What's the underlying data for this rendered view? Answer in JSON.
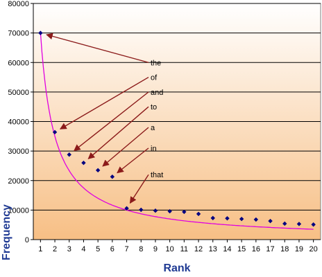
{
  "chart_data": {
    "type": "scatter",
    "title": "",
    "xlabel": "Rank",
    "ylabel": "Frequency",
    "xlim": [
      0.5,
      20.5
    ],
    "ylim": [
      0,
      80000
    ],
    "x_ticks": [
      1,
      2,
      3,
      4,
      5,
      6,
      7,
      8,
      9,
      10,
      11,
      12,
      13,
      14,
      15,
      16,
      17,
      18,
      19,
      20
    ],
    "y_ticks": [
      0,
      10000,
      20000,
      30000,
      40000,
      50000,
      60000,
      70000,
      80000
    ],
    "y_tick_labels": [
      "0",
      "10000",
      "20000",
      "30000",
      "40000",
      "50000",
      "60000",
      "70000",
      "80000"
    ],
    "grid": "horizontal",
    "background_gradient": [
      "#ffffff",
      "#f7bf85"
    ],
    "series": [
      {
        "kind": "points",
        "color": "#000080",
        "x": [
          1,
          2,
          3,
          4,
          5,
          6,
          7,
          8,
          9,
          10,
          11,
          12,
          13,
          14,
          15,
          16,
          17,
          18,
          19,
          20
        ],
        "y": [
          70000,
          36400,
          28800,
          26000,
          23500,
          21300,
          10600,
          10100,
          9800,
          9600,
          9400,
          8700,
          7300,
          7200,
          7000,
          6800,
          6300,
          5400,
          5300,
          5100
        ]
      },
      {
        "kind": "curve",
        "color": "#e000e0",
        "formula": "70000 / x",
        "x": [
          1,
          2,
          3,
          4,
          5,
          6,
          7,
          8,
          9,
          10,
          11,
          12,
          13,
          14,
          15,
          16,
          17,
          18,
          19,
          20
        ]
      }
    ],
    "annotations": [
      {
        "text": "the",
        "point": 1,
        "label_y": 60000
      },
      {
        "text": "of",
        "point": 2,
        "label_y": 55000
      },
      {
        "text": "and",
        "point": 3,
        "label_y": 50000
      },
      {
        "text": "to",
        "point": 4,
        "label_y": 45000
      },
      {
        "text": "a",
        "point": 5,
        "label_y": 38000
      },
      {
        "text": "in",
        "point": 6,
        "label_y": 31000
      },
      {
        "text": "that",
        "point": 7,
        "label_y": 22000
      }
    ],
    "arrow_color": "#8b1a1a"
  }
}
